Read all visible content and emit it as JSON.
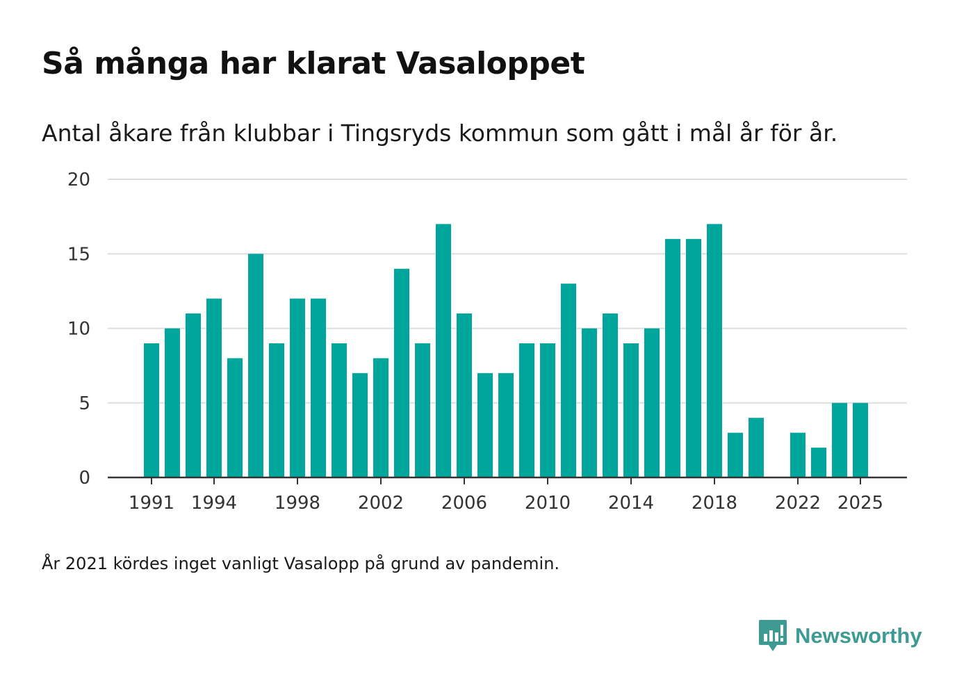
{
  "header": {
    "title": "Så många har klarat Vasaloppet",
    "subtitle": "Antal åkare från klubbar i Tingsryds kommun som gått i mål år för år."
  },
  "footnote": "År 2021 kördes inget vanligt Vasalopp på grund av pandemin.",
  "brand": {
    "name": "Newsworthy",
    "color": "#3d9b94",
    "icon": "newsworthy-logo-icon"
  },
  "colors": {
    "bar": "#00a59b",
    "grid": "#dddddd",
    "axis": "#333333",
    "tick_text": "#333333"
  },
  "chart_data": {
    "type": "bar",
    "title": "Så många har klarat Vasaloppet",
    "xlabel": "",
    "ylabel": "",
    "ylim": [
      0,
      20
    ],
    "yticks": [
      0,
      5,
      10,
      15,
      20
    ],
    "xtick_labels": [
      "1991",
      "1994",
      "1998",
      "2002",
      "2006",
      "2010",
      "2014",
      "2018",
      "2022",
      "2025"
    ],
    "grid": true,
    "categories": [
      "1991",
      "1992",
      "1993",
      "1994",
      "1995",
      "1996",
      "1997",
      "1998",
      "1999",
      "2000",
      "2001",
      "2002",
      "2003",
      "2004",
      "2005",
      "2006",
      "2007",
      "2008",
      "2009",
      "2010",
      "2011",
      "2012",
      "2013",
      "2014",
      "2015",
      "2016",
      "2017",
      "2018",
      "2019",
      "2020",
      "2021",
      "2022",
      "2023",
      "2024",
      "2025"
    ],
    "values": [
      9,
      10,
      11,
      12,
      8,
      15,
      9,
      12,
      12,
      9,
      7,
      8,
      14,
      9,
      17,
      11,
      7,
      7,
      9,
      9,
      13,
      10,
      11,
      9,
      10,
      16,
      16,
      17,
      3,
      4,
      null,
      3,
      2,
      5,
      5
    ]
  }
}
